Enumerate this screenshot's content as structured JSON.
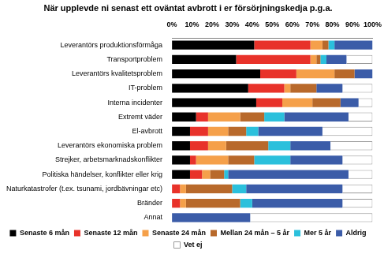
{
  "chart_data": {
    "type": "bar",
    "orientation": "horizontal",
    "stacked": true,
    "title": "När upplevde ni senast ett oväntat avbrott i er försörjningskedja p.g.a.",
    "categories": [
      "Leverantörs produktionsförmåga",
      "Transportproblem",
      "Leverantörs kvalitetsproblem",
      "IT-problem",
      "Interna incidenter",
      "Extremt väder",
      "El-avbrott",
      "Leverantörs ekonomiska problem",
      "Strejker, arbetsmarknadskonflikter",
      "Politiska händelser, konflikter eller krig",
      "Naturkatastrofer (t.ex. tsunami, jordbävningar etc)",
      "Bränder",
      "Annat"
    ],
    "series": [
      {
        "name": "Senaste 6 mån",
        "color": "#000000",
        "values": [
          41,
          32,
          44,
          38,
          42,
          12,
          9,
          9,
          9,
          9,
          0,
          0,
          0
        ]
      },
      {
        "name": "Senaste 12 mån",
        "color": "#e8322a",
        "values": [
          28,
          37,
          18,
          18,
          13,
          6,
          9,
          9,
          3,
          6,
          4,
          4,
          0
        ]
      },
      {
        "name": "Senaste 24 mån",
        "color": "#f5a04a",
        "values": [
          6,
          3,
          19,
          3,
          15,
          16,
          10,
          9,
          16,
          4,
          3,
          3,
          0
        ]
      },
      {
        "name": "Mellan 24 mån – 5 år",
        "color": "#b8692b",
        "values": [
          3,
          2,
          10,
          13,
          14,
          12,
          9,
          21,
          13,
          7,
          23,
          27,
          0
        ]
      },
      {
        "name": "Mer 5 år",
        "color": "#2bc0dc",
        "values": [
          3,
          3,
          0,
          0,
          0,
          10,
          6,
          11,
          18,
          2,
          7,
          6,
          0
        ]
      },
      {
        "name": "Aldrig",
        "color": "#3b5ca8",
        "values": [
          19,
          10,
          9,
          13,
          9,
          32,
          32,
          20,
          26,
          60,
          48,
          45,
          39
        ]
      },
      {
        "name": "Vet ej",
        "color": "#ffffff",
        "values": [
          0,
          13,
          0,
          15,
          7,
          12,
          25,
          21,
          15,
          12,
          15,
          15,
          61
        ]
      }
    ],
    "xlim": [
      0,
      100
    ],
    "xticks": [
      {
        "value": 0,
        "label": "0%"
      },
      {
        "value": 10,
        "label": "10%"
      },
      {
        "value": 20,
        "label": "20%"
      },
      {
        "value": 30,
        "label": "30%"
      },
      {
        "value": 40,
        "label": "40%"
      },
      {
        "value": 50,
        "label": "50%"
      },
      {
        "value": 60,
        "label": "60%"
      },
      {
        "value": 70,
        "label": "70%"
      },
      {
        "value": 80,
        "label": "80%"
      },
      {
        "value": 90,
        "label": "90%"
      },
      {
        "value": 100,
        "label": "100%"
      }
    ],
    "grid": false,
    "legend": "bottom"
  }
}
